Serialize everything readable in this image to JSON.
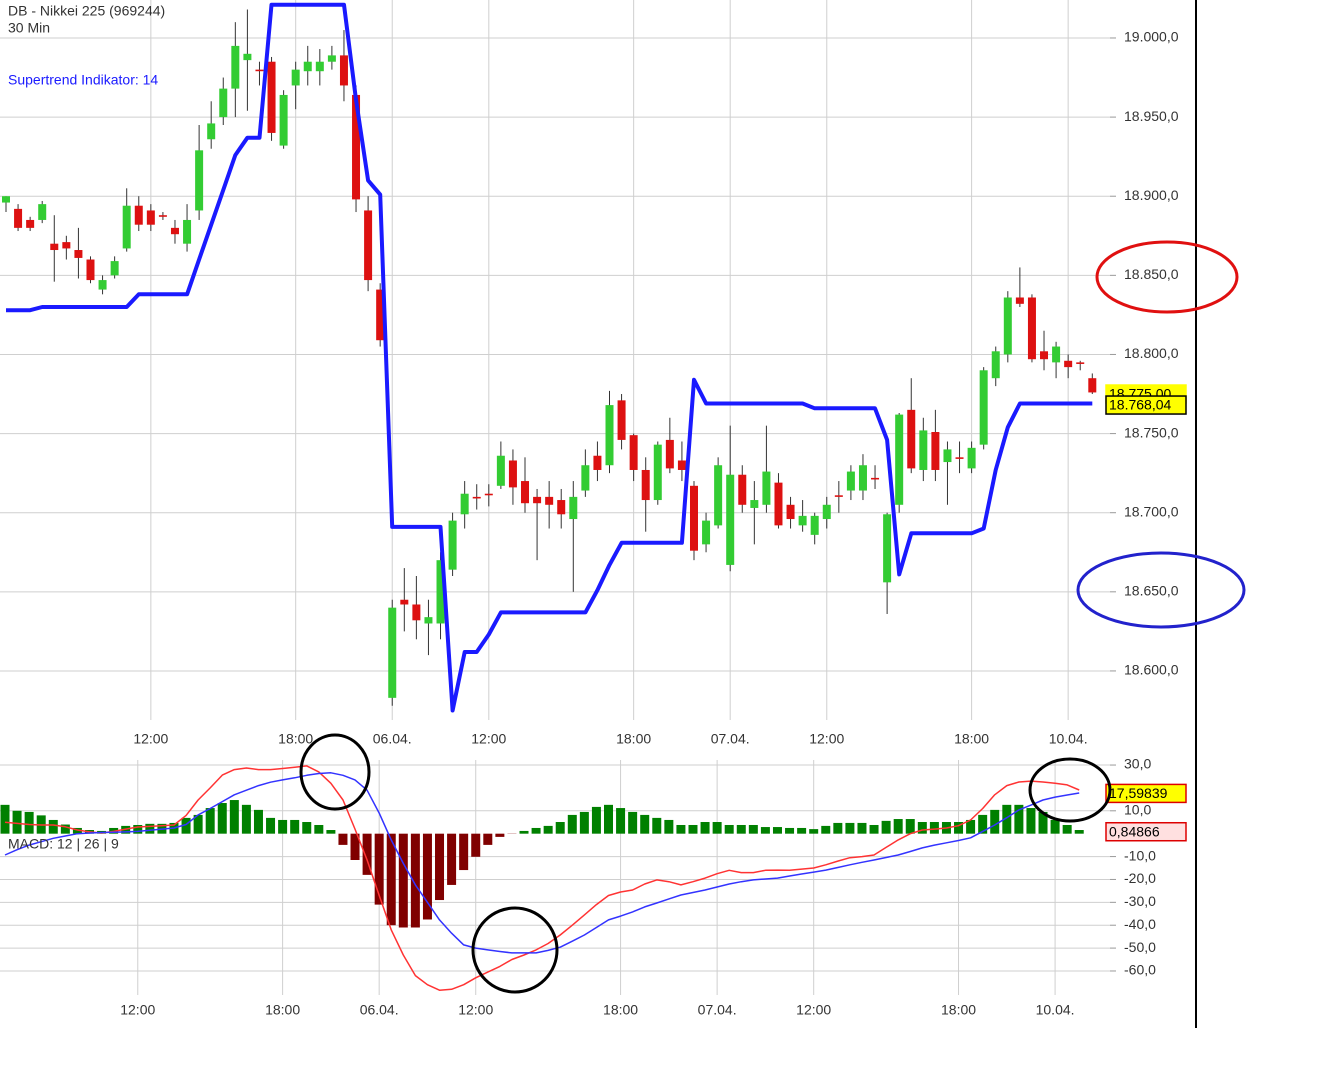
{
  "chart_data": [
    {
      "type": "candlestick",
      "title": "DB - Nikkei 225 (969244)",
      "subtitle": "30 Min",
      "categories": [
        null,
        null,
        null,
        null,
        null,
        null,
        null,
        null,
        null,
        null,
        null,
        null,
        "12:00",
        null,
        null,
        null,
        null,
        null,
        null,
        null,
        null,
        null,
        null,
        null,
        "18:00",
        null,
        null,
        null,
        null,
        null,
        null,
        null,
        "06.04.",
        null,
        null,
        null,
        null,
        null,
        null,
        null,
        "12:00",
        null,
        null,
        null,
        null,
        null,
        null,
        null,
        null,
        null,
        null,
        null,
        "18:00",
        null,
        null,
        null,
        null,
        null,
        null,
        null,
        "07.04.",
        null,
        null,
        null,
        null,
        null,
        null,
        null,
        "12:00",
        null,
        null,
        null,
        null,
        null,
        null,
        null,
        null,
        null,
        null,
        null,
        "18:00",
        null,
        null,
        null,
        null,
        null,
        null,
        null,
        "10.04.",
        null,
        null
      ],
      "open": [
        18896,
        18892,
        18885,
        18885,
        18870,
        18871,
        18866,
        18860,
        18841,
        18850,
        18867,
        18894,
        18891,
        18888,
        18880,
        18870,
        18891,
        18936,
        18950,
        18968,
        18986,
        18980,
        18985,
        18932,
        18970,
        18979,
        18979,
        18985,
        18989,
        18964,
        18891,
        18841,
        18583,
        18645,
        18642,
        18630,
        18630,
        18664,
        18699,
        18710,
        18712,
        18717,
        18733,
        18720,
        18710,
        18710,
        18708,
        18696,
        18714,
        18736,
        18730,
        18771,
        18749,
        18727,
        18708,
        18746,
        18733,
        18717,
        18680,
        18692,
        18667,
        18724,
        18703,
        18705,
        18719,
        18705,
        18692,
        18686,
        18696,
        18711,
        18714,
        18714,
        18722,
        18656,
        18705,
        18765,
        18727,
        18751,
        18732,
        18735,
        18728,
        18743,
        18785,
        18800,
        18836,
        18836,
        18802,
        18795,
        18796,
        18795,
        18785
      ],
      "high": [
        18900,
        18895,
        18887,
        18897,
        18888,
        18875,
        18880,
        18862,
        18850,
        18862,
        18905,
        18900,
        18895,
        18890,
        18885,
        18895,
        18945,
        18960,
        18975,
        19010,
        19018,
        18985,
        18988,
        18967,
        18985,
        18995,
        18993,
        18995,
        19005,
        18970,
        18900,
        18845,
        18645,
        18665,
        18660,
        18645,
        18675,
        18700,
        18720,
        18718,
        18718,
        18745,
        18740,
        18735,
        18715,
        18720,
        18715,
        18720,
        18740,
        18745,
        18777,
        18775,
        18750,
        18735,
        18745,
        18760,
        18745,
        18720,
        18700,
        18735,
        18755,
        18730,
        18720,
        18755,
        18725,
        18710,
        18708,
        18700,
        18710,
        18720,
        18730,
        18737,
        18730,
        18700,
        18763,
        18785,
        18760,
        18765,
        18745,
        18745,
        18745,
        18792,
        18805,
        18840,
        18855,
        18838,
        18815,
        18808,
        18800,
        18796,
        18788
      ],
      "low": [
        18890,
        18878,
        18878,
        18883,
        18846,
        18860,
        18848,
        18845,
        18838,
        18848,
        18865,
        18878,
        18878,
        18885,
        18870,
        18865,
        18885,
        18930,
        18945,
        18950,
        18954,
        18970,
        18935,
        18930,
        18955,
        18970,
        18970,
        18980,
        18960,
        18890,
        18840,
        18805,
        18578,
        18625,
        18620,
        18610,
        18620,
        18660,
        18690,
        18702,
        18704,
        18715,
        18705,
        18700,
        18670,
        18690,
        18690,
        18650,
        18710,
        18720,
        18725,
        18740,
        18720,
        18688,
        18705,
        18725,
        18720,
        18670,
        18675,
        18690,
        18663,
        18700,
        18680,
        18700,
        18690,
        18690,
        18688,
        18680,
        18690,
        18700,
        18708,
        18708,
        18715,
        18636,
        18700,
        18725,
        18720,
        18720,
        18705,
        18725,
        18725,
        18740,
        18780,
        18795,
        18830,
        18795,
        18790,
        18785,
        18785,
        18790,
        18775
      ],
      "close": [
        18900,
        18880,
        18880,
        18895,
        18866,
        18867,
        18861,
        18847,
        18847,
        18859,
        18894,
        18882,
        18882,
        18887,
        18876,
        18885,
        18929,
        18946,
        18968,
        18995,
        18990,
        18979,
        18940,
        18964,
        18980,
        18985,
        18985,
        18989,
        18970,
        18898,
        18847,
        18809,
        18640,
        18642,
        18632,
        18634,
        18670,
        18695,
        18712,
        18709,
        18711,
        18736,
        18716,
        18706,
        18706,
        18705,
        18699,
        18710,
        18730,
        18727,
        18768,
        18746,
        18727,
        18708,
        18743,
        18728,
        18727,
        18676,
        18695,
        18730,
        18724,
        18705,
        18708,
        18726,
        18692,
        18696,
        18698,
        18698,
        18705,
        18710,
        18726,
        18730,
        18721,
        18699,
        18762,
        18728,
        18752,
        18727,
        18740,
        18734,
        18741,
        18790,
        18802,
        18836,
        18832,
        18797,
        18797,
        18805,
        18792,
        18794,
        18776
      ],
      "up_color": "#33cc33",
      "down_color": "#dd1111",
      "wick_color": "#333333",
      "series": [
        {
          "name": "Supertrend Indikator: 14",
          "color": "#1a1aff",
          "values": [
            18828,
            18828,
            18828,
            18830,
            18830,
            18830,
            18830,
            18830,
            18830,
            18830,
            18830,
            18838,
            18838,
            18838,
            18838,
            18838,
            18860,
            18882,
            18904,
            18926,
            18937,
            18937,
            19021,
            19021,
            19021,
            19021,
            19021,
            19021,
            19021,
            18961,
            18910,
            18901,
            18691,
            18691,
            18691,
            18691,
            18691,
            18575,
            18612,
            18612,
            18623,
            18637,
            18637,
            18637,
            18637,
            18637,
            18637,
            18637,
            18637,
            18651,
            18667,
            18681,
            18681,
            18681,
            18681,
            18681,
            18681,
            18784,
            18769,
            18769,
            18769,
            18769,
            18769,
            18769,
            18769,
            18769,
            18769,
            18766,
            18766,
            18766,
            18766,
            18766,
            18766,
            18746,
            18661,
            18687,
            18687,
            18687,
            18687,
            18687,
            18687,
            18690,
            18727,
            18754,
            18769,
            18769,
            18769,
            18769,
            18769,
            18769,
            18769
          ]
        }
      ],
      "ylim": [
        18569,
        19024
      ],
      "yticks": [
        {
          "value": 19000,
          "label": "19.000,0"
        },
        {
          "value": 18950,
          "label": "18.950,0"
        },
        {
          "value": 18900,
          "label": "18.900,0"
        },
        {
          "value": 18850,
          "label": "18.850,0"
        },
        {
          "value": 18800,
          "label": "18.800,0"
        },
        {
          "value": 18750,
          "label": "18.750,0"
        },
        {
          "value": 18700,
          "label": "18.700,0"
        },
        {
          "value": 18650,
          "label": "18.650,0"
        },
        {
          "value": 18600,
          "label": "18.600,0"
        }
      ],
      "markers": [
        {
          "value": 18775,
          "label": "18.775,00",
          "color": "#ffff00",
          "border": "#ffff00"
        },
        {
          "value": 18768.04,
          "label": "18.768,04",
          "color": "#ffff00",
          "border": "#000000"
        }
      ],
      "grid": true
    },
    {
      "type": "macd",
      "title": "MACD: 12 | 26 | 9",
      "categories": [
        null,
        null,
        null,
        null,
        null,
        null,
        null,
        null,
        null,
        null,
        null,
        "12:00",
        null,
        null,
        null,
        null,
        null,
        null,
        null,
        null,
        null,
        null,
        null,
        "18:00",
        null,
        null,
        null,
        null,
        null,
        null,
        null,
        "06.04.",
        null,
        null,
        null,
        null,
        null,
        null,
        null,
        "12:00",
        null,
        null,
        null,
        null,
        null,
        null,
        null,
        null,
        null,
        null,
        null,
        "18:00",
        null,
        null,
        null,
        null,
        null,
        null,
        null,
        "07.04.",
        null,
        null,
        null,
        null,
        null,
        null,
        null,
        "12:00",
        null,
        null,
        null,
        null,
        null,
        null,
        null,
        null,
        null,
        null,
        null,
        "18:00",
        null,
        null,
        null,
        null,
        null,
        null,
        null,
        "10.04.",
        null,
        null
      ],
      "histogram": {
        "up_color": "#008000",
        "down_color": "#800000",
        "values": [
          12.6,
          10,
          9.5,
          8,
          6,
          4,
          2.5,
          1.6,
          1.2,
          2.5,
          3.4,
          3.8,
          4.3,
          4.3,
          4.7,
          6.9,
          8.2,
          11.2,
          13.4,
          14.7,
          12.6,
          10.4,
          6.9,
          6,
          6,
          5.1,
          3.8,
          1.6,
          -4.9,
          -11.5,
          -18,
          -31,
          -40,
          -41,
          -41,
          -37.5,
          -29,
          -22.4,
          -15.9,
          -10.1,
          -4.9,
          -1.4,
          -0.1,
          1.2,
          2.5,
          3.4,
          5.1,
          8.2,
          9.5,
          11.7,
          12.6,
          11.2,
          9.5,
          8.2,
          6.9,
          6,
          3.8,
          3.8,
          5.1,
          5.1,
          3.8,
          3.8,
          3.8,
          2.9,
          2.9,
          2.5,
          2.5,
          2,
          3.4,
          4.7,
          4.7,
          4.7,
          3.8,
          5.6,
          6.4,
          6.4,
          5.1,
          5.1,
          5.1,
          5.1,
          6,
          8.2,
          10.4,
          12.6,
          12.6,
          11.2,
          9.5,
          6,
          3.8,
          1.6
        ]
      },
      "lines": [
        {
          "color": "#ff3333",
          "values": [
            5,
            4.5,
            4,
            3.8,
            3.8,
            3,
            1.6,
            0.8,
            0.3,
            1,
            2,
            2.9,
            3.2,
            3.5,
            3.8,
            8,
            14.7,
            20,
            25.6,
            28,
            28.7,
            28,
            28,
            28.5,
            29,
            29.6,
            27,
            22,
            14.7,
            2,
            -11.5,
            -27,
            -42,
            -53,
            -62,
            -66,
            -68.4,
            -68,
            -66,
            -63,
            -60.5,
            -58,
            -55,
            -53,
            -50.8,
            -48,
            -44.3,
            -40,
            -35.5,
            -31,
            -27,
            -25.5,
            -24.6,
            -22,
            -20.2,
            -21,
            -22.4,
            -21,
            -19.4,
            -17.5,
            -16,
            -17,
            -17,
            -16,
            -15.9,
            -16,
            -15.5,
            -15,
            -13.6,
            -12,
            -10.5,
            -10,
            -9.3,
            -6,
            -2.7,
            0,
            1.6,
            2,
            2.5,
            3.5,
            6,
            11,
            17,
            21,
            22.6,
            23,
            22.6,
            22,
            21.3,
            19.1
          ]
        },
        {
          "color": "#3333ff",
          "values": [
            -9.3,
            -7,
            -5,
            -3.5,
            -2,
            -1,
            0,
            0.3,
            0.5,
            0.6,
            0.8,
            1,
            1.5,
            2,
            2.5,
            4,
            8.2,
            11,
            14,
            17,
            19,
            21,
            22.5,
            23.5,
            24.4,
            25.5,
            26.3,
            26.6,
            25.5,
            23.5,
            19,
            9,
            -2.7,
            -13,
            -22.4,
            -30,
            -37.7,
            -43.5,
            -48.6,
            -50,
            -50.8,
            -51.5,
            -52.1,
            -52.1,
            -52.1,
            -51,
            -49.6,
            -47,
            -44.3,
            -41,
            -37.7,
            -36,
            -34.2,
            -32,
            -30.3,
            -28.5,
            -26.8,
            -25.7,
            -24.6,
            -23.3,
            -22,
            -21,
            -20.2,
            -19.8,
            -19.4,
            -18.5,
            -17.6,
            -16.8,
            -15.9,
            -14.8,
            -13.6,
            -12.5,
            -11.5,
            -10.4,
            -9.3,
            -7.8,
            -6.2,
            -5,
            -4,
            -3,
            -1.8,
            1,
            3.8,
            7,
            10.4,
            12.5,
            14.7,
            16,
            16.9,
            17.8
          ]
        }
      ],
      "ylim": [
        -70.5,
        32.2
      ],
      "yticks": [
        {
          "value": 30,
          "label": "30,0"
        },
        {
          "value": 10,
          "label": "10,0"
        },
        {
          "value": -10,
          "label": "-10,0"
        },
        {
          "value": -20,
          "label": "-20,0"
        },
        {
          "value": -30,
          "label": "-30,0"
        },
        {
          "value": -40,
          "label": "-40,0"
        },
        {
          "value": -50,
          "label": "-50,0"
        },
        {
          "value": -60,
          "label": "-60,0"
        }
      ],
      "markers": [
        {
          "value": 17.59839,
          "label": "17,59839",
          "color": "#ffff00",
          "border": "#dd0000"
        },
        {
          "value": 0.84866,
          "label": "0,84866",
          "color": "#ffe0e0",
          "border": "#dd0000"
        }
      ],
      "grid": true
    }
  ]
}
